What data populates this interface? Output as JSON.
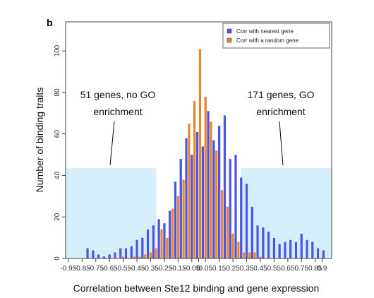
{
  "chart_data": {
    "type": "bar",
    "panel_label": "b",
    "xlabel": "Correlation between Ste12 binding and gene expression",
    "ylabel": "Number of binding traits",
    "x_tick_labels": [
      "-0.95",
      "-0.85",
      "-0.75",
      "-0.65",
      "-0.55",
      "-0.45",
      "-0.35",
      "-0.25",
      "-0.15",
      "-0.05",
      "0",
      "0.05",
      "0.15",
      "0.25",
      "0.35",
      "0.45",
      "0.55",
      "0.65",
      "0.75",
      "0.85",
      "0.9"
    ],
    "y_tick_labels": [
      "0",
      "20",
      "40",
      "60",
      "80",
      "100"
    ],
    "xlim": [
      -0.97,
      0.97
    ],
    "ylim": [
      0,
      114
    ],
    "x_tick_values": [
      -0.95,
      -0.85,
      -0.75,
      -0.65,
      -0.55,
      -0.45,
      -0.35,
      -0.25,
      -0.15,
      -0.05,
      0,
      0.05,
      0.15,
      0.25,
      0.35,
      0.45,
      0.55,
      0.65,
      0.75,
      0.85,
      0.9
    ],
    "y_tick_values": [
      0,
      20,
      40,
      60,
      80,
      100
    ],
    "legend": {
      "position": "top-right"
    },
    "series": [
      {
        "name": "Corr with nearest gene",
        "color": "#4b55e6",
        "x": [
          -0.81,
          -0.77,
          -0.73,
          -0.69,
          -0.65,
          -0.61,
          -0.57,
          -0.53,
          -0.49,
          -0.45,
          -0.41,
          -0.37,
          -0.33,
          -0.29,
          -0.25,
          -0.21,
          -0.17,
          -0.13,
          -0.09,
          -0.05,
          -0.01,
          0.03,
          0.07,
          0.11,
          0.15,
          0.19,
          0.23,
          0.27,
          0.31,
          0.35,
          0.39,
          0.43,
          0.47,
          0.51,
          0.55,
          0.59,
          0.63,
          0.67,
          0.71,
          0.75,
          0.79,
          0.83,
          0.87,
          0.91
        ],
        "values": [
          5,
          4,
          2,
          1,
          2,
          3,
          5,
          5,
          6,
          9,
          10,
          14,
          16,
          19,
          17,
          23,
          37,
          48,
          58,
          50,
          61,
          54,
          71,
          57,
          64,
          69,
          48,
          50,
          39,
          36,
          25,
          16,
          15,
          13,
          10,
          7,
          8,
          9,
          8,
          12,
          9,
          8,
          5,
          4
        ]
      },
      {
        "name": "Corr with a random gene",
        "color": "#e8872e",
        "x": [
          -0.79,
          -0.75,
          -0.71,
          -0.67,
          -0.63,
          -0.59,
          -0.55,
          -0.51,
          -0.47,
          -0.43,
          -0.39,
          -0.35,
          -0.31,
          -0.27,
          -0.23,
          -0.19,
          -0.15,
          -0.11,
          -0.07,
          -0.03,
          0.01,
          0.05,
          0.09,
          0.13,
          0.17,
          0.21,
          0.25,
          0.29,
          0.33,
          0.37,
          0.41,
          0.45,
          0.49,
          0.53,
          0.57,
          0.61,
          0.65,
          0.69,
          0.73,
          0.77,
          0.81,
          0.85,
          0.89,
          0.93
        ],
        "values": [
          0,
          0,
          0,
          0,
          0,
          0,
          1,
          0,
          1,
          1,
          2,
          3,
          5,
          14,
          10,
          24,
          30,
          38,
          65,
          76,
          101,
          78,
          66,
          52,
          33,
          25,
          12,
          8,
          3,
          3,
          3,
          1,
          0,
          0,
          0,
          0,
          0,
          0,
          0,
          0,
          0,
          0,
          0,
          0
        ]
      }
    ],
    "shaded_regions": [
      {
        "x0": -0.97,
        "x1": -0.31,
        "height": 43.5
      },
      {
        "x0": 0.31,
        "x1": 0.97,
        "height": 43.5
      }
    ],
    "annotations": [
      {
        "line1": "51 genes, no GO",
        "line2": "enrichment"
      },
      {
        "line1": "171 genes, GO",
        "line2": "enrichment"
      }
    ]
  }
}
